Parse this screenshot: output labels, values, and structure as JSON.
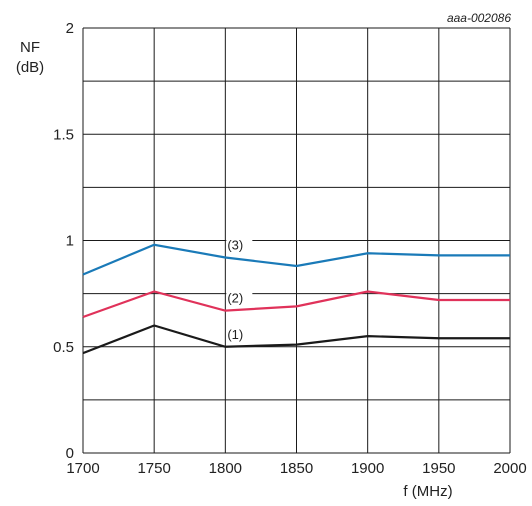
{
  "chart_data": {
    "type": "line",
    "reference": "aaa-002086",
    "xlabel": "f (MHz)",
    "ylabel_line1": "NF",
    "ylabel_line2": "(dB)",
    "xlim": [
      1700,
      2000
    ],
    "ylim": [
      0,
      2
    ],
    "x_ticks": [
      1700,
      1750,
      1800,
      1850,
      1900,
      1950,
      2000
    ],
    "x_tick_labels": [
      "1700",
      "1750",
      "1800",
      "1850",
      "1900",
      "1950",
      "2000"
    ],
    "y_ticks": [
      0,
      0.5,
      1,
      1.5,
      2
    ],
    "y_tick_labels": [
      "0",
      "0.5",
      "1",
      "1.5",
      "2"
    ],
    "grid": true,
    "x": [
      1700,
      1750,
      1800,
      1850,
      1900,
      1950,
      2000
    ],
    "series": [
      {
        "name": "(1)",
        "color": "#1a1a1a",
        "values": [
          0.47,
          0.6,
          0.5,
          0.51,
          0.55,
          0.54,
          0.54
        ]
      },
      {
        "name": "(2)",
        "color": "#e0325a",
        "values": [
          0.64,
          0.76,
          0.67,
          0.69,
          0.76,
          0.72,
          0.72
        ]
      },
      {
        "name": "(3)",
        "color": "#1a7ab8",
        "values": [
          0.84,
          0.98,
          0.92,
          0.88,
          0.94,
          0.93,
          0.93
        ]
      }
    ]
  }
}
